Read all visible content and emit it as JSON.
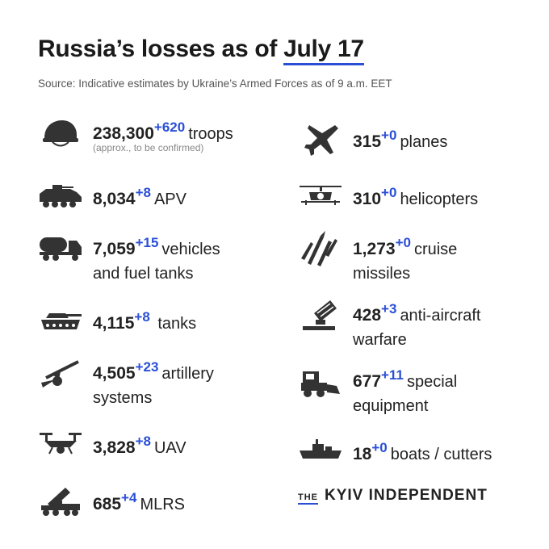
{
  "header": {
    "title_prefix": "Russia’s losses as of",
    "title_date": "July 17",
    "source": "Source: Indicative estimates by Ukraine’s Armed Forces as of 9 a.m. EET"
  },
  "left": [
    {
      "icon": "helmet-icon",
      "value": "238,300",
      "delta": "+620",
      "label": "troops",
      "note": "(approx., to be confirmed)"
    },
    {
      "icon": "apv-icon",
      "value": "8,034",
      "delta": "+8",
      "label": "APV"
    },
    {
      "icon": "fuel-truck-icon",
      "value": "7,059",
      "delta": "+15",
      "label": "vehicles",
      "label2": "and fuel tanks"
    },
    {
      "icon": "tank-icon",
      "value": "4,115",
      "delta": "+8",
      "label": "tanks"
    },
    {
      "icon": "artillery-icon",
      "value": "4,505",
      "delta": "+23",
      "label": "artillery",
      "label2": "systems"
    },
    {
      "icon": "drone-icon",
      "value": "3,828",
      "delta": "+8",
      "label": "UAV"
    },
    {
      "icon": "mlrs-icon",
      "value": "685",
      "delta": "+4",
      "label": "MLRS"
    }
  ],
  "right": [
    {
      "icon": "plane-icon",
      "value": "315",
      "delta": "+0",
      "label": "planes"
    },
    {
      "icon": "helicopter-icon",
      "value": "310",
      "delta": "+0",
      "label": "helicopters"
    },
    {
      "icon": "missile-icon",
      "value": "1,273",
      "delta": "+0",
      "label": "cruise",
      "label2": "missiles"
    },
    {
      "icon": "anti-aircraft-icon",
      "value": "428",
      "delta": "+3",
      "label": "anti-aircraft",
      "label2": "warfare"
    },
    {
      "icon": "bulldozer-icon",
      "value": "677",
      "delta": "+11",
      "label": "special",
      "label2": "equipment"
    },
    {
      "icon": "boat-icon",
      "value": "18",
      "delta": "+0",
      "label": "boats / cutters"
    }
  ],
  "brand": {
    "the": "THE",
    "name": "KYIV INDEPENDENT"
  },
  "colors": {
    "accent": "#2a4fd6",
    "text": "#222222",
    "icon": "#333333"
  }
}
